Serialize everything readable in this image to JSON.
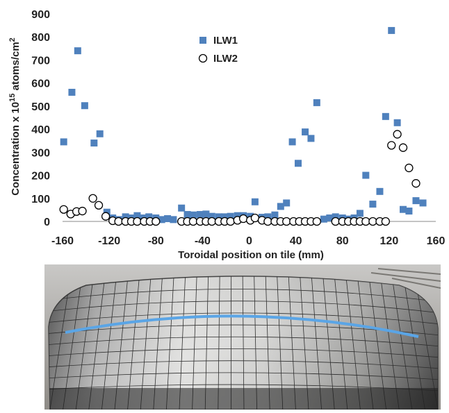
{
  "chart_data": {
    "type": "scatter",
    "title": "",
    "xlabel": "Toroidal position on tile (mm)",
    "ylabel_prefix": "Concentration x 10",
    "ylabel_exp": "15",
    "ylabel_suffix": " atoms/cm",
    "ylabel_exp2": "2",
    "xlim": [
      -160,
      160
    ],
    "ylim": [
      0,
      900
    ],
    "xticks": [
      -160,
      -120,
      -80,
      -40,
      0,
      40,
      80,
      120,
      160
    ],
    "yticks": [
      0,
      100,
      200,
      300,
      400,
      500,
      600,
      700,
      800,
      900
    ],
    "grid": false,
    "legend_position": "top-center",
    "series": [
      {
        "name": "ILW1",
        "marker": "filled-square",
        "color": "#4f81bd",
        "points": [
          [
            -159,
            345
          ],
          [
            -152,
            560
          ],
          [
            -147,
            740
          ],
          [
            -141,
            502
          ],
          [
            -133,
            340
          ],
          [
            -128,
            380
          ],
          [
            -122,
            40
          ],
          [
            -117,
            15
          ],
          [
            -112,
            8
          ],
          [
            -106,
            20
          ],
          [
            -101,
            15
          ],
          [
            -96,
            25
          ],
          [
            -91,
            15
          ],
          [
            -86,
            20
          ],
          [
            -80,
            15
          ],
          [
            -75,
            8
          ],
          [
            -70,
            12
          ],
          [
            -65,
            8
          ],
          [
            -58,
            58
          ],
          [
            -53,
            30
          ],
          [
            -48,
            28
          ],
          [
            -42,
            30
          ],
          [
            -37,
            32
          ],
          [
            -32,
            22
          ],
          [
            -26,
            20
          ],
          [
            -21,
            20
          ],
          [
            -16,
            22
          ],
          [
            -10,
            25
          ],
          [
            -5,
            25
          ],
          [
            1,
            22
          ],
          [
            5,
            85
          ],
          [
            11,
            18
          ],
          [
            16,
            20
          ],
          [
            22,
            28
          ],
          [
            27,
            65
          ],
          [
            32,
            80
          ],
          [
            37,
            345
          ],
          [
            42,
            252
          ],
          [
            48,
            388
          ],
          [
            53,
            360
          ],
          [
            58,
            515
          ],
          [
            64,
            10
          ],
          [
            69,
            15
          ],
          [
            74,
            20
          ],
          [
            80,
            15
          ],
          [
            85,
            10
          ],
          [
            90,
            15
          ],
          [
            95,
            35
          ],
          [
            100,
            200
          ],
          [
            106,
            75
          ],
          [
            112,
            130
          ],
          [
            117,
            455
          ],
          [
            122,
            828
          ],
          [
            127,
            428
          ],
          [
            132,
            52
          ],
          [
            137,
            45
          ],
          [
            143,
            90
          ],
          [
            149,
            80
          ]
        ]
      },
      {
        "name": "ILW2",
        "marker": "open-circle",
        "color": "#000000",
        "points": [
          [
            -159,
            52
          ],
          [
            -153,
            32
          ],
          [
            -148,
            43
          ],
          [
            -143,
            45
          ],
          [
            -134,
            100
          ],
          [
            -129,
            70
          ],
          [
            -123,
            22
          ],
          [
            -117,
            3
          ],
          [
            -112,
            0
          ],
          [
            -106,
            0
          ],
          [
            -101,
            0
          ],
          [
            -96,
            0
          ],
          [
            -90,
            0
          ],
          [
            -85,
            0
          ],
          [
            -80,
            0
          ],
          [
            -58,
            0
          ],
          [
            -53,
            0
          ],
          [
            -48,
            0
          ],
          [
            -42,
            0
          ],
          [
            -37,
            0
          ],
          [
            -32,
            0
          ],
          [
            -26,
            0
          ],
          [
            -21,
            0
          ],
          [
            -16,
            0
          ],
          [
            -10,
            5
          ],
          [
            -5,
            12
          ],
          [
            1,
            5
          ],
          [
            5,
            15
          ],
          [
            11,
            5
          ],
          [
            16,
            0
          ],
          [
            22,
            0
          ],
          [
            27,
            0
          ],
          [
            32,
            0
          ],
          [
            38,
            0
          ],
          [
            43,
            0
          ],
          [
            48,
            0
          ],
          [
            53,
            0
          ],
          [
            58,
            0
          ],
          [
            74,
            0
          ],
          [
            80,
            0
          ],
          [
            85,
            0
          ],
          [
            90,
            0
          ],
          [
            95,
            0
          ],
          [
            100,
            0
          ],
          [
            106,
            0
          ],
          [
            112,
            0
          ],
          [
            117,
            0
          ],
          [
            122,
            330
          ],
          [
            127,
            378
          ],
          [
            132,
            320
          ],
          [
            137,
            232
          ],
          [
            143,
            165
          ]
        ]
      }
    ]
  }
}
